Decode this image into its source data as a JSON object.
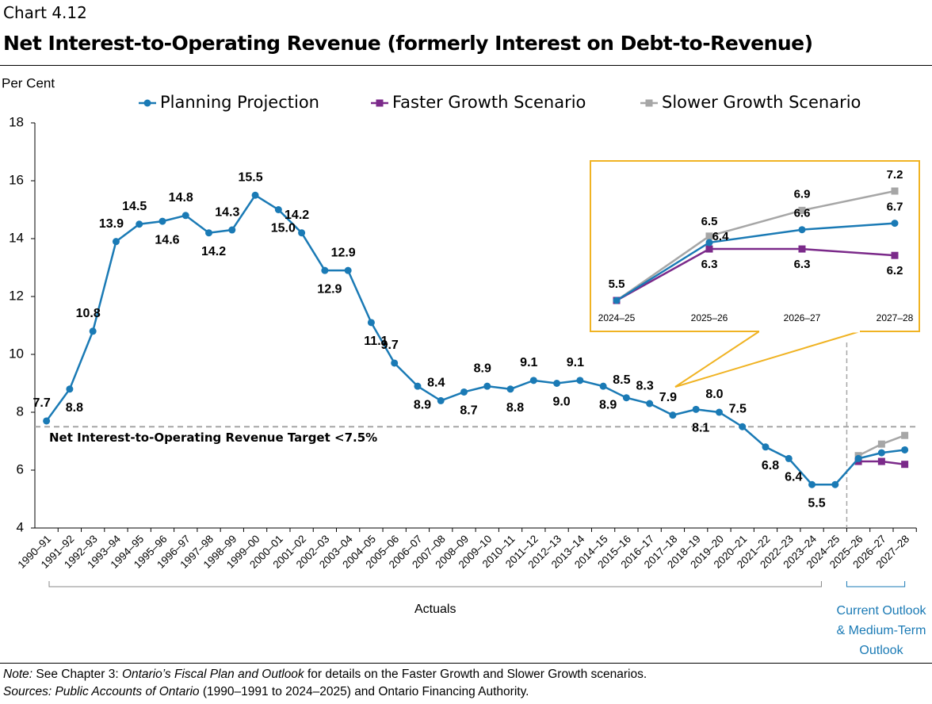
{
  "header": "Chart 4.12",
  "title": "Net Interest-to-Operating Revenue (formerly Interest on Debt-to-Revenue)",
  "chart_data": [
    {
      "type": "line",
      "y_label": "Per Cent",
      "categories": [
        "1990–91",
        "1991–92",
        "1992–93",
        "1993–94",
        "1994–95",
        "1995–96",
        "1996–97",
        "1997–98",
        "1998–99",
        "1999–00",
        "2000–01",
        "2001–02",
        "2002–03",
        "2003–04",
        "2004–05",
        "2005–06",
        "2006–07",
        "2007–08",
        "2008–09",
        "2009–10",
        "2010–11",
        "2011–12",
        "2012–13",
        "2013–14",
        "2014–15",
        "2015–16",
        "2016–17",
        "2017–18",
        "2018–19",
        "2019–20",
        "2020–21",
        "2021–22",
        "2022–23",
        "2023–24",
        "2024–25",
        "2025–26",
        "2026–27",
        "2027–28"
      ],
      "series": [
        {
          "name": "Planning Projection",
          "color": "#1a7ab5",
          "marker": "circle",
          "values": [
            7.7,
            8.8,
            10.8,
            13.9,
            14.5,
            14.6,
            14.8,
            14.2,
            14.3,
            15.5,
            15.0,
            14.2,
            12.9,
            12.9,
            11.1,
            9.7,
            8.9,
            8.4,
            8.7,
            8.9,
            8.8,
            9.1,
            9.0,
            9.1,
            8.9,
            8.5,
            8.3,
            7.9,
            8.1,
            8.0,
            7.5,
            6.8,
            6.4,
            5.5,
            5.5,
            6.4,
            6.6,
            6.7
          ],
          "value_labels": [
            "7.7",
            "8.8",
            "10.8",
            "13.9",
            "14.5",
            "14.6",
            "14.8",
            "14.2",
            "14.3",
            "15.5",
            "15.0",
            "14.2",
            "12.9",
            "12.9",
            "11.1",
            "9.7",
            "8.9",
            "8.4",
            "8.7",
            "8.9",
            "8.8",
            "9.1",
            "9.0",
            "9.1",
            "8.9",
            "8.5",
            "8.3",
            "7.9",
            "8.1",
            "8.0",
            "7.5",
            "6.8",
            "6.4",
            "5.5",
            null,
            null,
            null,
            null
          ]
        },
        {
          "name": "Faster Growth Scenario",
          "color": "#7b2a8a",
          "marker": "square",
          "values": [
            null,
            null,
            null,
            null,
            null,
            null,
            null,
            null,
            null,
            null,
            null,
            null,
            null,
            null,
            null,
            null,
            null,
            null,
            null,
            null,
            null,
            null,
            null,
            null,
            null,
            null,
            null,
            null,
            null,
            null,
            null,
            null,
            null,
            null,
            null,
            6.3,
            6.3,
            6.2
          ]
        },
        {
          "name": "Slower Growth Scenario",
          "color": "#a6a6a6",
          "marker": "square",
          "values": [
            null,
            null,
            null,
            null,
            null,
            null,
            null,
            null,
            null,
            null,
            null,
            null,
            null,
            null,
            null,
            null,
            null,
            null,
            null,
            null,
            null,
            null,
            null,
            null,
            null,
            null,
            null,
            null,
            null,
            null,
            null,
            null,
            null,
            null,
            null,
            6.5,
            6.9,
            7.2
          ]
        }
      ],
      "ylim": [
        4,
        18
      ],
      "yticks": [
        4,
        6,
        8,
        10,
        12,
        14,
        16,
        18
      ],
      "annotations": [
        {
          "text": "Net Interest-to-Operating Revenue Target <7.5%",
          "value": 7.5
        }
      ],
      "period_labels": [
        "Actuals",
        "Current Outlook & Medium-Term Outlook"
      ]
    },
    {
      "type": "line",
      "categories": [
        "2024–25",
        "2025–26",
        "2026–27",
        "2027–28"
      ],
      "series": [
        {
          "color": "#1a7ab5",
          "marker": "circle",
          "values": [
            5.5,
            6.4,
            6.6,
            6.7
          ],
          "value_labels": [
            "5.5",
            "6.4",
            "6.6",
            "6.7"
          ]
        },
        {
          "color": "#7b2a8a",
          "marker": "square",
          "values": [
            5.5,
            6.3,
            6.3,
            6.2
          ],
          "value_labels": [
            null,
            "6.3",
            "6.3",
            "6.2"
          ]
        },
        {
          "color": "#a6a6a6",
          "marker": "square",
          "values": [
            5.5,
            6.5,
            6.9,
            7.2
          ],
          "value_labels": [
            null,
            "6.5",
            "6.9",
            "7.2"
          ]
        }
      ]
    }
  ],
  "notes": [
    [
      "Note:",
      " See Chapter 3: ",
      "Ontario’s Fiscal Plan and Outlook",
      " for details on the Faster Growth and Slower Growth scenarios."
    ],
    [
      "Sources: Public Accounts of Ontario",
      " (1990–1991 to 2024–2025) and Ontario Financing Authority."
    ]
  ]
}
